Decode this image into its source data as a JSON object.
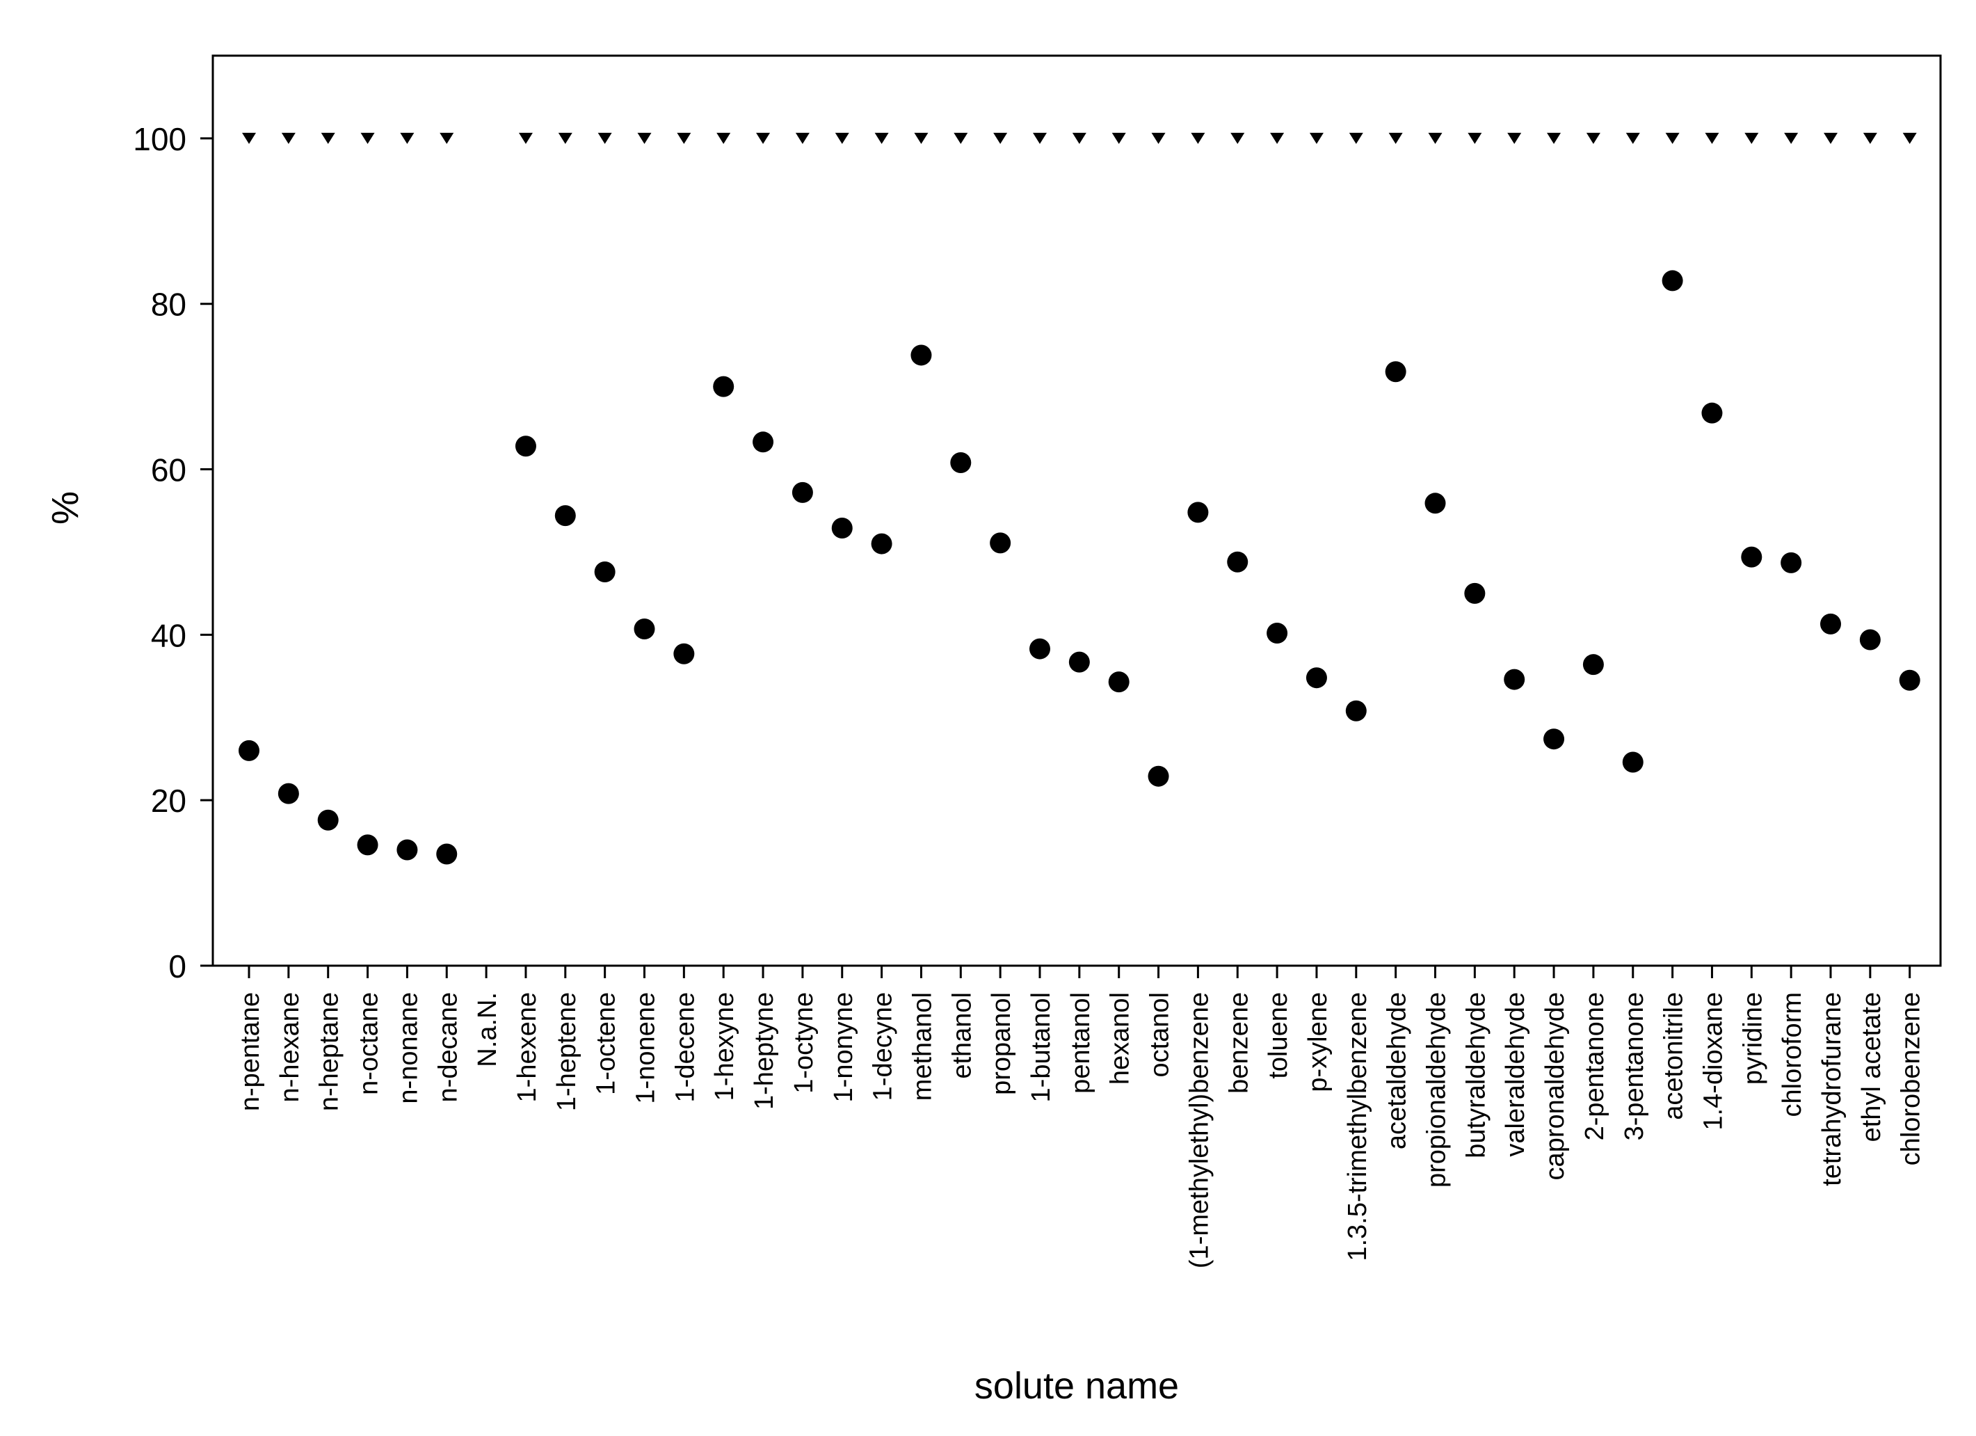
{
  "chart_data": {
    "type": "scatter",
    "title": "",
    "xlabel": "solute name",
    "ylabel": "%",
    "ylim": [
      0,
      110
    ],
    "yticks": [
      0,
      20,
      40,
      60,
      80,
      100
    ],
    "ytick_labels": [
      "0",
      "20",
      "40",
      "60",
      "80",
      "100"
    ],
    "grid": false,
    "legend": "none",
    "categories": [
      "n-pentane",
      "n-hexane",
      "n-heptane",
      "n-octane",
      "n-nonane",
      "n-decane",
      "N.a.N.",
      "1-hexene",
      "1-heptene",
      "1-octene",
      "1-nonene",
      "1-decene",
      "1-hexyne",
      "1-heptyne",
      "1-octyne",
      "1-nonyne",
      "1-decyne",
      "methanol",
      "ethanol",
      "propanol",
      "1-butanol",
      "pentanol",
      "hexanol",
      "octanol",
      "(1-methylethyl)benzene",
      "benzene",
      "toluene",
      "p-xylene",
      "1.3.5-trimethylbenzene",
      "acetaldehyde",
      "propionaldehyde",
      "butyraldehyde",
      "valeraldehyde",
      "capronaldehyde",
      "2-pentanone",
      "3-pentanone",
      "acetonitrile",
      "1.4-dioxane",
      "pyridine",
      "chloroform",
      "tetrahydrofurane",
      "ethyl acetate",
      "chlorobenzene"
    ],
    "series": [
      {
        "marker": "circle",
        "color": "#000000",
        "values": [
          26,
          20.8,
          17.6,
          14.6,
          14,
          13.5,
          null,
          62.8,
          54.4,
          47.6,
          40.7,
          37.7,
          70,
          63.3,
          57.2,
          52.9,
          51,
          73.8,
          60.8,
          51.1,
          38.3,
          36.7,
          34.3,
          22.9,
          54.8,
          48.8,
          40.2,
          34.8,
          30.8,
          71.8,
          55.9,
          45,
          34.6,
          27.4,
          36.4,
          24.6,
          82.8,
          66.8,
          49.4,
          48.7,
          41.3,
          39.4,
          34.5
        ]
      },
      {
        "marker": "triangle-down",
        "color": "#000000",
        "values": [
          100,
          100,
          100,
          100,
          100,
          100,
          null,
          100,
          100,
          100,
          100,
          100,
          100,
          100,
          100,
          100,
          100,
          100,
          100,
          100,
          100,
          100,
          100,
          100,
          100,
          100,
          100,
          100,
          100,
          100,
          100,
          100,
          100,
          100,
          100,
          100,
          100,
          100,
          100,
          100,
          100,
          100,
          100
        ]
      }
    ]
  }
}
